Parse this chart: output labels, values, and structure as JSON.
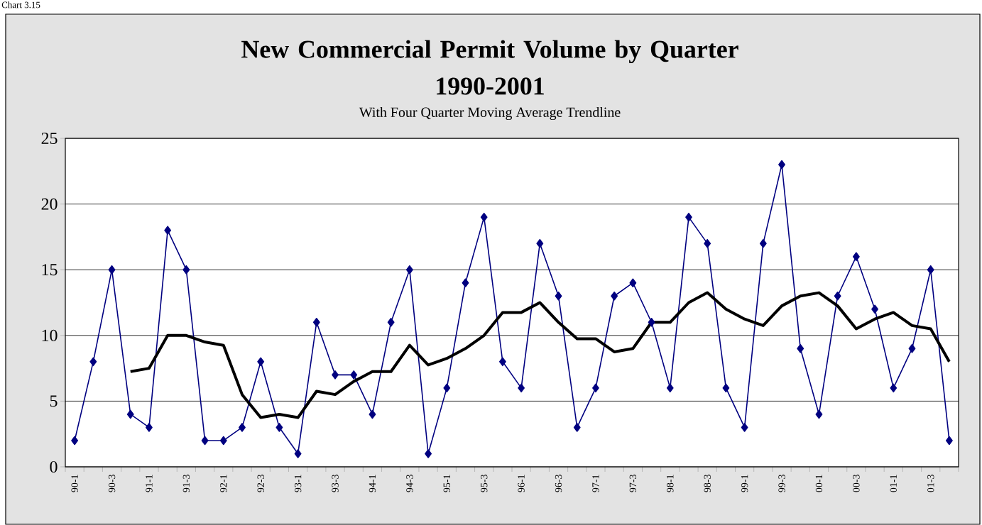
{
  "chart_data": {
    "type": "line",
    "title": "New Commercial Permit Volume by Quarter\n1990-2001",
    "subtitle": "With Four Quarter Moving Average Trendline",
    "annotations": [
      "Chart 3.15"
    ],
    "categories": [
      "90-1",
      null,
      "90-3",
      null,
      "91-1",
      null,
      "91-3",
      null,
      "92-1",
      null,
      "92-3",
      null,
      "93-1",
      null,
      "93-3",
      null,
      "94-1",
      null,
      "94-3",
      null,
      "95-1",
      null,
      "95-3",
      null,
      "96-1",
      null,
      "96-3",
      null,
      "97-1",
      null,
      "97-3",
      null,
      "98-1",
      null,
      "98-3",
      null,
      "99-1",
      null,
      "99-3",
      null,
      "00-1",
      null,
      "00-3",
      null,
      "01-1",
      null,
      "01-3",
      null
    ],
    "series": [
      {
        "color": "#000080",
        "marker": "diamond",
        "values": [
          2,
          8,
          15,
          4,
          3,
          18,
          15,
          2,
          2,
          3,
          8,
          3,
          1,
          11,
          7,
          7,
          4,
          11,
          15,
          1,
          6,
          14,
          19,
          8,
          6,
          17,
          13,
          3,
          6,
          13,
          14,
          11,
          6,
          19,
          17,
          6,
          3,
          17,
          23,
          9,
          4,
          13,
          16,
          12,
          6,
          9,
          15,
          2
        ]
      },
      {
        "color": "#000000",
        "marker": "none",
        "values": [
          null,
          null,
          null,
          7.25,
          7.5,
          10,
          10,
          9.5,
          9.25,
          5.5,
          3.75,
          4,
          3.75,
          5.75,
          5.5,
          6.5,
          7.25,
          7.25,
          9.25,
          7.75,
          8.25,
          9,
          10,
          11.75,
          11.75,
          12.5,
          11,
          9.75,
          9.75,
          8.75,
          9,
          11,
          11,
          12.5,
          13.25,
          12,
          11.25,
          10.75,
          12.25,
          13,
          13.25,
          12.25,
          10.5,
          11.25,
          11.75,
          10.75,
          10.5,
          8
        ]
      }
    ],
    "ylim": [
      0,
      25
    ],
    "yticks": [
      0,
      5,
      10,
      15,
      20,
      25
    ],
    "grid": "y"
  }
}
